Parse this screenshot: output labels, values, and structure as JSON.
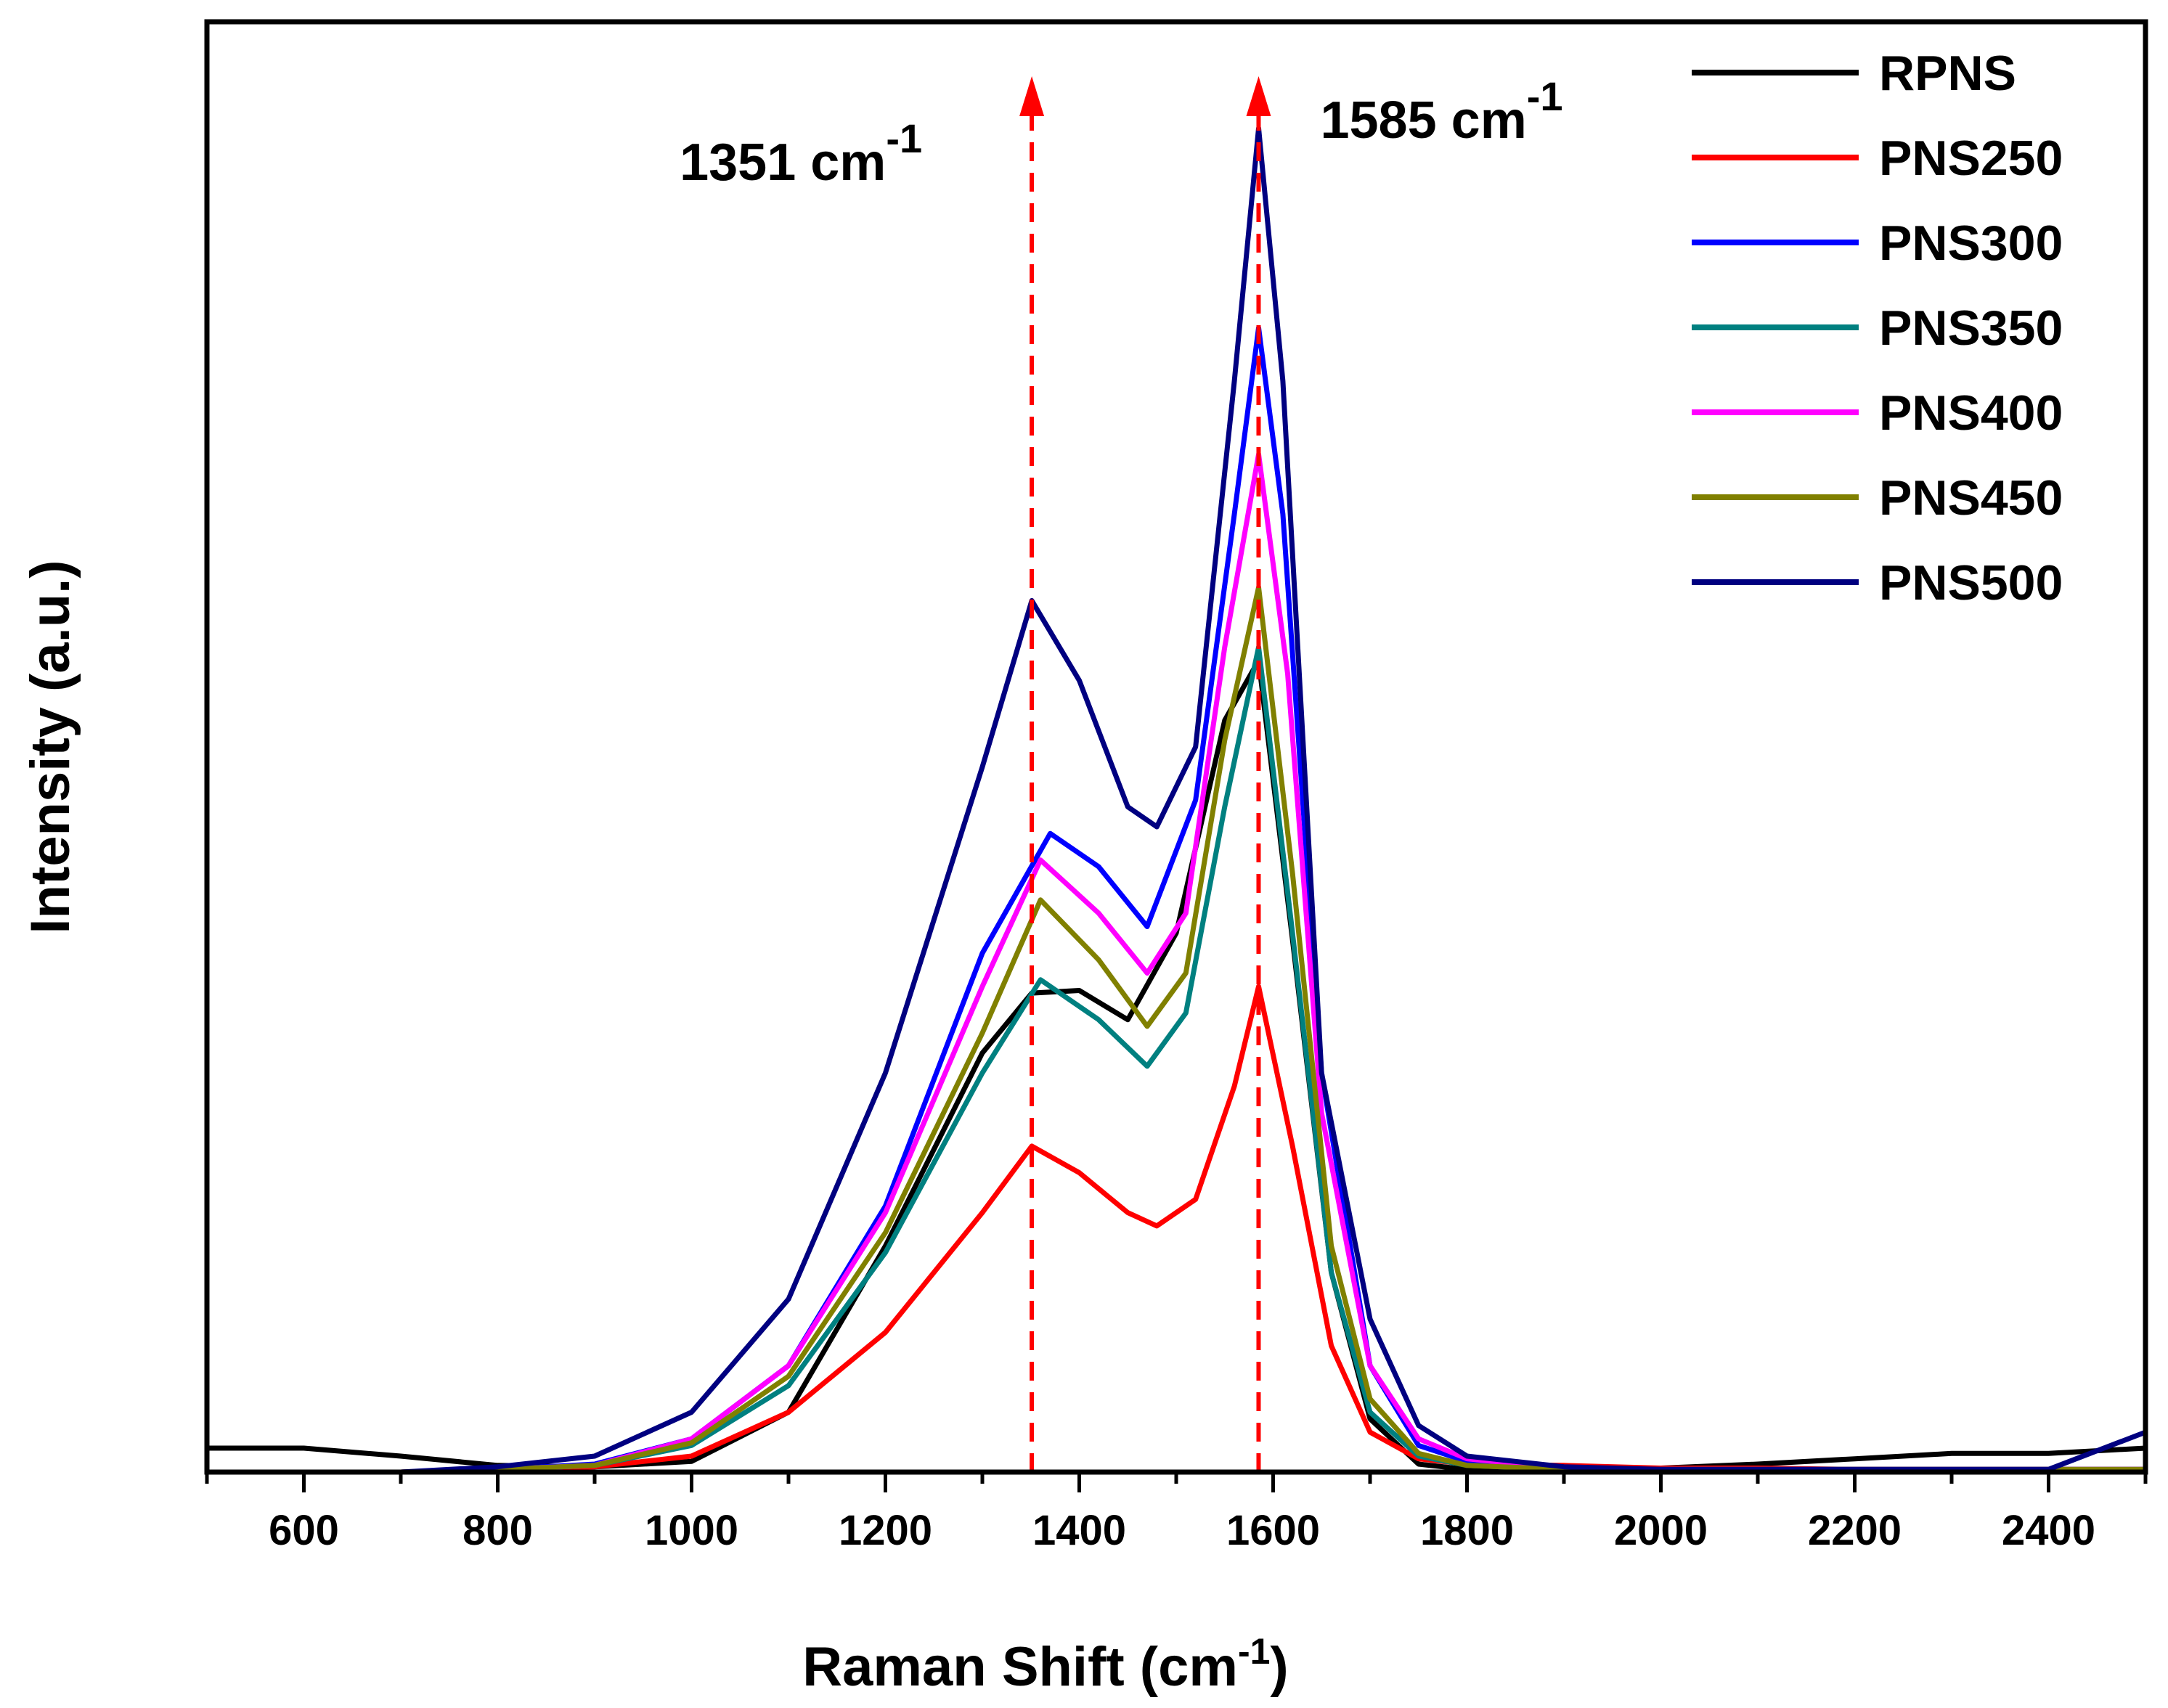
{
  "chart_data": {
    "type": "line",
    "title": "",
    "xlabel": "Raman Shift (cm",
    "xlabel_sup": "-1",
    "xlabel_tail": ")",
    "ylabel": "Intensity (a.u.)",
    "xlim": [
      500,
      2500
    ],
    "ylim": [
      0,
      1000
    ],
    "x_ticks": [
      600,
      800,
      1000,
      1200,
      1400,
      1600,
      1800,
      2000,
      2200,
      2400
    ],
    "x_tick_labels": [
      "600",
      "800",
      "1000",
      "1200",
      "1400",
      "1600",
      "1800",
      "2000",
      "2200",
      "2400"
    ],
    "x_minor_step": 100,
    "y_ticks_shown": false,
    "grid": false,
    "legend_position": "top-right",
    "annotations": [
      {
        "x": 1351,
        "label": "1351 cm",
        "sup": "-1",
        "style": "dashed-arrow",
        "color": "#ff0000"
      },
      {
        "x": 1585,
        "label": "1585 cm",
        "sup": "-1",
        "style": "dashed-arrow",
        "color": "#ff0000"
      }
    ],
    "series": [
      {
        "name": "RPNS",
        "color": "#000000",
        "x": [
          500,
          600,
          700,
          800,
          900,
          1000,
          1100,
          1200,
          1300,
          1351,
          1400,
          1450,
          1500,
          1550,
          1585,
          1620,
          1660,
          1700,
          1750,
          1800,
          1900,
          2000,
          2100,
          2200,
          2300,
          2400,
          2500
        ],
        "y": [
          18,
          18,
          12,
          5,
          4,
          8,
          45,
          170,
          315,
          360,
          362,
          340,
          405,
          565,
          610,
          400,
          150,
          40,
          6,
          2,
          1,
          3,
          6,
          10,
          14,
          14,
          18
        ]
      },
      {
        "name": "PNS250",
        "color": "#ff0000",
        "x": [
          500,
          600,
          700,
          800,
          900,
          1000,
          1100,
          1200,
          1300,
          1351,
          1400,
          1450,
          1480,
          1520,
          1560,
          1585,
          1620,
          1660,
          1700,
          1750,
          1800,
          1900,
          2000,
          2100,
          2200,
          2300,
          2400,
          2500
        ],
        "y": [
          0,
          0,
          0,
          2,
          4,
          12,
          45,
          105,
          195,
          245,
          225,
          195,
          185,
          205,
          290,
          365,
          245,
          95,
          30,
          10,
          6,
          5,
          3,
          3,
          2,
          2,
          2,
          2
        ]
      },
      {
        "name": "PNS300",
        "color": "#0000ff",
        "x": [
          500,
          600,
          700,
          800,
          900,
          1000,
          1100,
          1200,
          1300,
          1370,
          1420,
          1470,
          1520,
          1560,
          1585,
          1610,
          1650,
          1700,
          1750,
          1800,
          1900,
          2000,
          2100,
          2200,
          2300,
          2400,
          2500
        ],
        "y": [
          0,
          0,
          0,
          2,
          6,
          25,
          80,
          200,
          390,
          480,
          455,
          410,
          505,
          720,
          860,
          720,
          300,
          80,
          20,
          8,
          3,
          2,
          2,
          2,
          2,
          2,
          2
        ]
      },
      {
        "name": "PNS350",
        "color": "#008080",
        "x": [
          500,
          600,
          700,
          800,
          900,
          1000,
          1100,
          1200,
          1300,
          1360,
          1420,
          1470,
          1510,
          1550,
          1585,
          1620,
          1660,
          1700,
          1750,
          1800,
          1900,
          2000,
          2100,
          2200,
          2300,
          2400,
          2500
        ],
        "y": [
          0,
          0,
          0,
          2,
          5,
          20,
          65,
          165,
          300,
          370,
          340,
          305,
          345,
          500,
          620,
          405,
          150,
          45,
          12,
          5,
          2,
          2,
          2,
          2,
          2,
          2,
          2
        ]
      },
      {
        "name": "PNS400",
        "color": "#ff00ff",
        "x": [
          500,
          600,
          700,
          800,
          900,
          1000,
          1100,
          1200,
          1300,
          1360,
          1420,
          1470,
          1510,
          1550,
          1585,
          1615,
          1650,
          1700,
          1750,
          1800,
          1900,
          2000,
          2100,
          2200,
          2300,
          2400,
          2500
        ],
        "y": [
          0,
          0,
          0,
          2,
          5,
          25,
          80,
          195,
          365,
          460,
          420,
          375,
          420,
          620,
          765,
          600,
          270,
          80,
          25,
          10,
          3,
          2,
          2,
          2,
          2,
          2,
          2
        ]
      },
      {
        "name": "PNS450",
        "color": "#808000",
        "x": [
          500,
          600,
          700,
          800,
          900,
          1000,
          1100,
          1200,
          1300,
          1360,
          1420,
          1470,
          1510,
          1550,
          1585,
          1620,
          1660,
          1700,
          1750,
          1800,
          1900,
          2000,
          2100,
          2200,
          2300,
          2400,
          2500
        ],
        "y": [
          0,
          0,
          0,
          2,
          5,
          22,
          72,
          180,
          330,
          430,
          385,
          335,
          375,
          550,
          665,
          450,
          170,
          55,
          14,
          5,
          2,
          2,
          2,
          2,
          2,
          2,
          2
        ]
      },
      {
        "name": "PNS500",
        "color": "#000080",
        "x": [
          500,
          600,
          700,
          800,
          900,
          1000,
          1100,
          1200,
          1300,
          1351,
          1400,
          1450,
          1480,
          1520,
          1560,
          1585,
          1610,
          1650,
          1700,
          1750,
          1800,
          1900,
          2000,
          2100,
          2200,
          2300,
          2400,
          2500
        ],
        "y": [
          0,
          0,
          0,
          4,
          12,
          45,
          130,
          300,
          530,
          655,
          595,
          500,
          485,
          545,
          820,
          1010,
          820,
          300,
          115,
          35,
          12,
          4,
          2,
          2,
          2,
          2,
          2,
          30
        ]
      }
    ]
  }
}
